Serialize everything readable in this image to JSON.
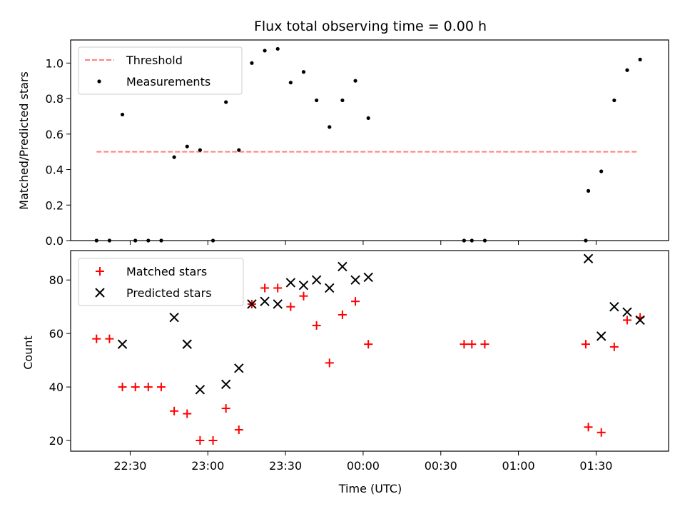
{
  "chart_data": {
    "type": "scatter",
    "title": "Flux total observing time = 0.00 h",
    "xlabel": "Time (UTC)",
    "x_tick_labels": [
      "22:30",
      "23:00",
      "23:30",
      "00:00",
      "00:30",
      "01:00",
      "01:30"
    ],
    "x_ticks_minutes": [
      -90,
      -60,
      -30,
      0,
      30,
      60,
      90
    ],
    "xlim_minutes": [
      -113,
      118
    ],
    "top": {
      "ylabel": "Matched/Predicted stars",
      "ylim": [
        0,
        1.13
      ],
      "yticks": [
        0.0,
        0.2,
        0.4,
        0.6,
        0.8,
        1.0
      ],
      "ytick_labels": [
        "0.0",
        "0.2",
        "0.4",
        "0.6",
        "0.8",
        "1.0"
      ],
      "legend": [
        "Threshold",
        "Measurements"
      ],
      "threshold": {
        "value": 0.5,
        "x_range": [
          -103,
          106
        ],
        "color": "#ff7f7f"
      },
      "measurements": {
        "x": [
          -103,
          -98,
          -93,
          -88,
          -83,
          -78,
          -73,
          -68,
          -63,
          -58,
          -53,
          -48,
          -43,
          -38,
          -33,
          -28,
          -23,
          -18,
          -13,
          -8,
          -3,
          2,
          39,
          42,
          47,
          86,
          87,
          92,
          97,
          102,
          107
        ],
        "y": [
          0.0,
          0.0,
          0.71,
          0.0,
          0.0,
          0.0,
          0.47,
          0.53,
          0.51,
          0.0,
          0.78,
          0.51,
          1.0,
          1.07,
          1.08,
          0.89,
          0.95,
          0.79,
          0.64,
          0.79,
          0.9,
          0.69,
          0.0,
          0.0,
          0.0,
          0.0,
          0.28,
          0.39,
          0.79,
          0.96,
          1.02
        ]
      }
    },
    "bottom": {
      "ylabel": "Count",
      "ylim": [
        16,
        91
      ],
      "yticks": [
        20,
        40,
        60,
        80
      ],
      "ytick_labels": [
        "20",
        "40",
        "60",
        "80"
      ],
      "legend": [
        "Matched stars",
        "Predicted stars"
      ],
      "matched": {
        "color": "#ff0000",
        "x": [
          -103,
          -98,
          -93,
          -88,
          -83,
          -78,
          -73,
          -68,
          -63,
          -58,
          -53,
          -48,
          -43,
          -38,
          -33,
          -28,
          -23,
          -18,
          -13,
          -8,
          -3,
          2,
          39,
          42,
          47,
          86,
          87,
          92,
          97,
          102,
          107
        ],
        "y": [
          58,
          58,
          40,
          40,
          40,
          40,
          31,
          30,
          20,
          20,
          32,
          24,
          71,
          77,
          77,
          70,
          74,
          63,
          49,
          67,
          72,
          56,
          56,
          56,
          56,
          56,
          25,
          23,
          55,
          65,
          66
        ]
      },
      "predicted": {
        "color": "#000000",
        "x": [
          -93,
          -73,
          -68,
          -63,
          -53,
          -48,
          -43,
          -38,
          -33,
          -28,
          -23,
          -18,
          -13,
          -8,
          -3,
          2,
          87,
          92,
          97,
          102,
          107
        ],
        "y": [
          56,
          66,
          56,
          39,
          41,
          47,
          71,
          72,
          71,
          79,
          78,
          80,
          77,
          85,
          80,
          81,
          88,
          59,
          70,
          68,
          65
        ]
      }
    }
  }
}
